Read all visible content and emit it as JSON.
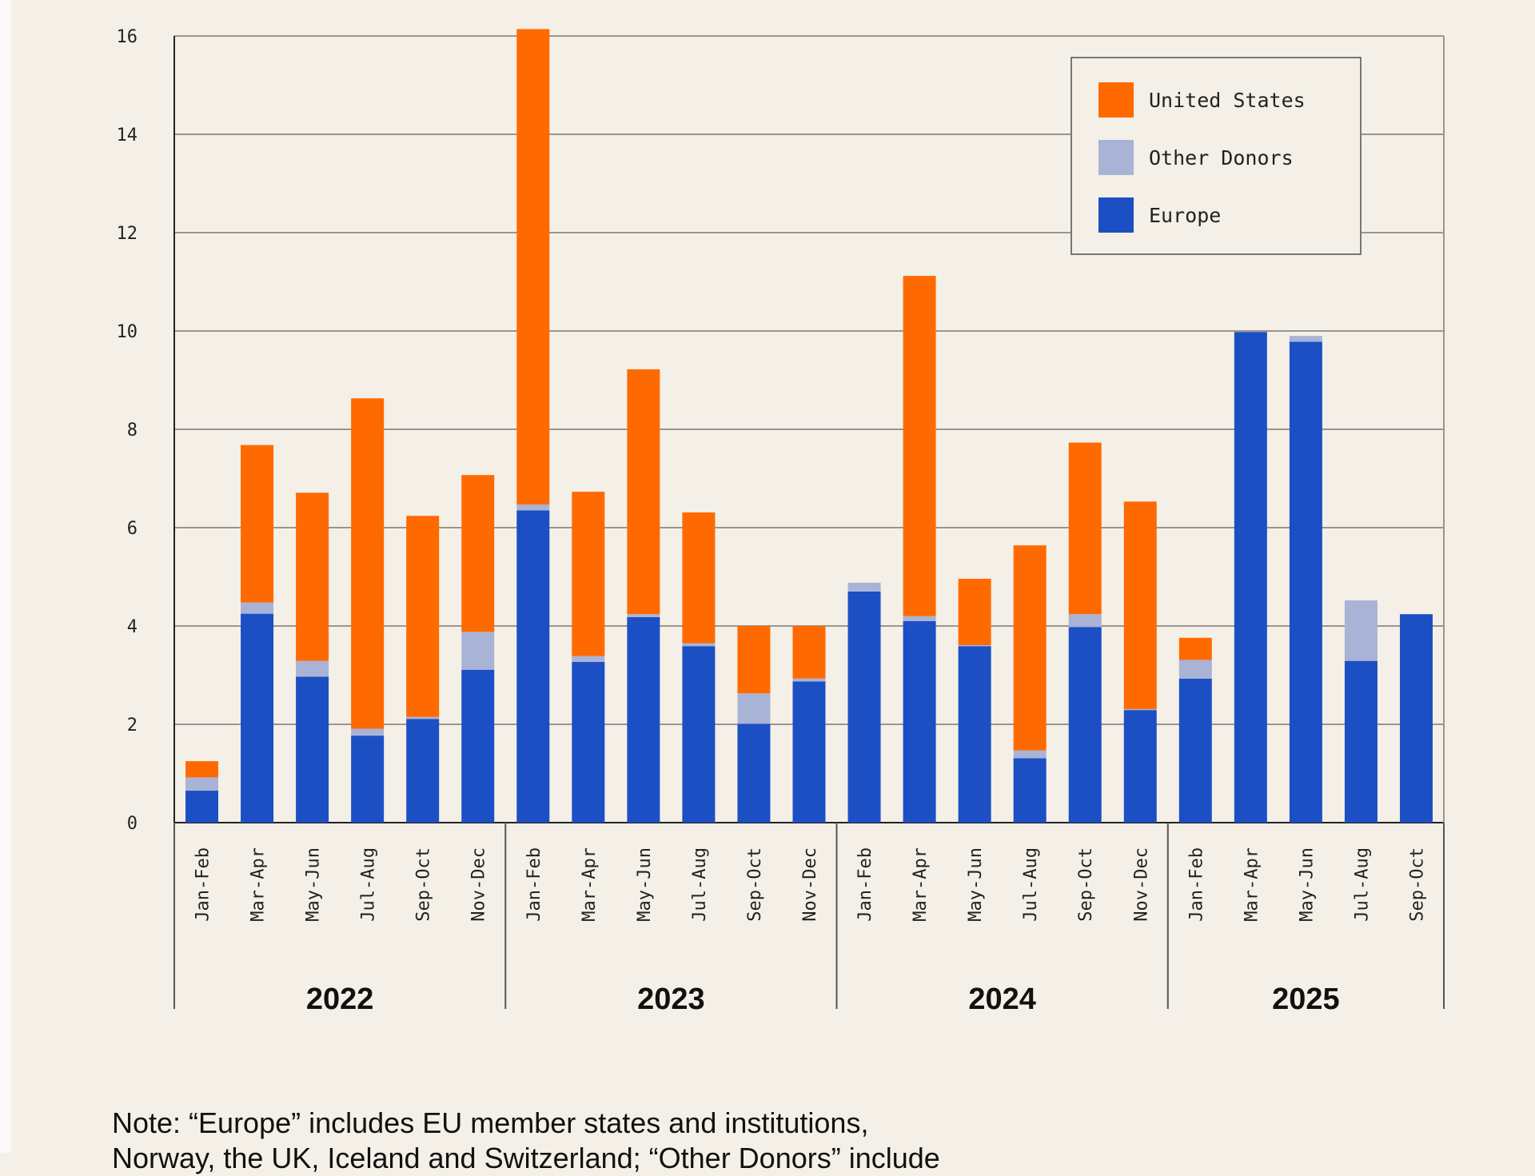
{
  "chart_data": {
    "type": "bar",
    "stacked": true,
    "categories": [
      "Jan-Feb",
      "Mar-Apr",
      "May-Jun",
      "Jul-Aug",
      "Sep-Oct",
      "Nov-Dec",
      "Jan-Feb",
      "Mar-Apr",
      "May-Jun",
      "Jul-Aug",
      "Sep-Oct",
      "Nov-Dec",
      "Jan-Feb",
      "Mar-Apr",
      "May-Jun",
      "Jul-Aug",
      "Sep-Oct",
      "Nov-Dec",
      "Jan-Feb",
      "Mar-Apr",
      "May-Jun",
      "Jul-Aug",
      "Sep-Oct"
    ],
    "groups": [
      {
        "label": "2022",
        "count": 6
      },
      {
        "label": "2023",
        "count": 6
      },
      {
        "label": "2024",
        "count": 6
      },
      {
        "label": "2025",
        "count": 5
      }
    ],
    "series": [
      {
        "name": "Europe",
        "color": "#1c4fc4",
        "values": [
          0.65,
          4.25,
          2.97,
          1.77,
          2.11,
          3.11,
          6.35,
          3.27,
          4.18,
          3.59,
          2.01,
          2.87,
          4.7,
          4.1,
          3.59,
          1.31,
          3.98,
          2.29,
          2.93,
          9.98,
          9.78,
          3.29,
          4.24
        ]
      },
      {
        "name": "Other Donors",
        "color": "#a9b3d6",
        "values": [
          0.27,
          0.23,
          0.32,
          0.14,
          0.04,
          0.77,
          0.12,
          0.12,
          0.06,
          0.06,
          0.62,
          0.06,
          0.18,
          0.1,
          0.02,
          0.16,
          0.26,
          0.02,
          0.38,
          0,
          0.12,
          1.23,
          0
        ]
      },
      {
        "name": "United States",
        "color": "#ff6a00",
        "values": [
          0.33,
          3.2,
          3.42,
          6.72,
          4.09,
          3.19,
          9.67,
          3.34,
          4.98,
          2.66,
          1.37,
          1.07,
          0,
          6.92,
          1.35,
          4.17,
          3.49,
          4.22,
          0.45,
          0,
          0,
          0,
          0
        ]
      }
    ],
    "legend_order": [
      "United States",
      "Other Donors",
      "Europe"
    ],
    "legend_position": "top-right",
    "yticks": [
      "0",
      "2",
      "4",
      "6",
      "8",
      "10",
      "12",
      "14",
      "16"
    ],
    "ylim": [
      0,
      16
    ],
    "grid": true
  },
  "note": {
    "line1": "Note: “Europe” includes EU member states and institutions,",
    "line2": "Norway, the UK, Iceland and Switzerland; “Other Donors” include"
  }
}
